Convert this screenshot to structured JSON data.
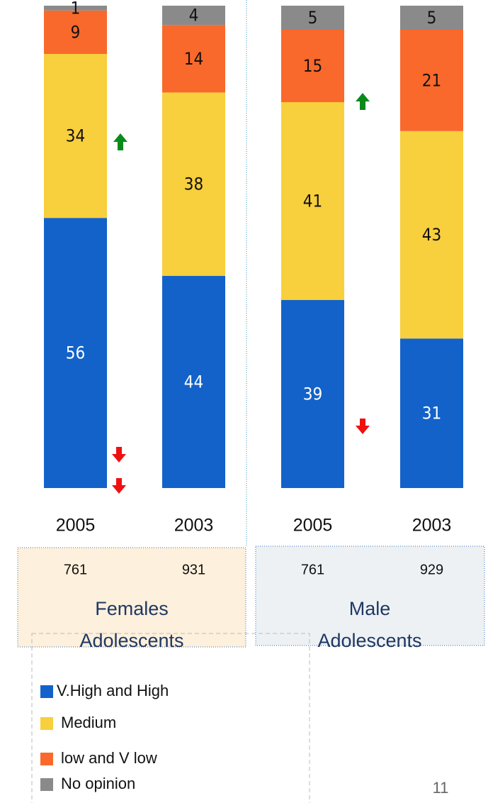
{
  "chart_data": {
    "type": "bar",
    "stacked": true,
    "categories": [
      "2005",
      "2003",
      "2005",
      "2003"
    ],
    "ylim": [
      0,
      100
    ],
    "series": [
      {
        "name": "V.High and High",
        "color": "#1262c9",
        "values": [
          56,
          44,
          39,
          31
        ]
      },
      {
        "name": "Medium",
        "color": "#f8cf3c",
        "values": [
          34,
          38,
          41,
          43
        ]
      },
      {
        "name": "low and V low",
        "color": "#f9692b",
        "values": [
          9,
          14,
          15,
          21
        ]
      },
      {
        "name": "No opinion",
        "color": "#8a8a8a",
        "values": [
          1,
          4,
          5,
          5
        ]
      }
    ],
    "sample_sizes": [
      761,
      931,
      761,
      929
    ],
    "groups": [
      {
        "label": [
          "Females",
          "Adolescents"
        ]
      },
      {
        "label": [
          "Male",
          "Adolescents"
        ]
      }
    ]
  },
  "page_number": 11
}
